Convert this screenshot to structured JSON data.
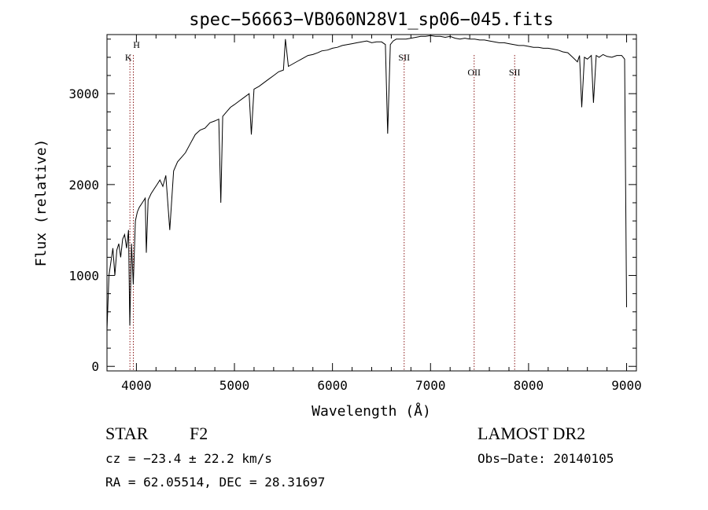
{
  "chart_data": {
    "type": "line",
    "title": "spec−56663−VB060N28V1_sp06−045.fits",
    "xlabel": "Wavelength (Å)",
    "ylabel": "Flux (relative)",
    "xlim": [
      3700,
      9100
    ],
    "ylim": [
      -50,
      3650
    ],
    "x_ticks": [
      4000,
      5000,
      6000,
      7000,
      8000,
      9000
    ],
    "y_ticks": [
      0,
      1000,
      2000,
      3000
    ],
    "x_tick_labels": [
      "4000",
      "5000",
      "6000",
      "7000",
      "8000",
      "9000"
    ],
    "y_tick_labels": [
      "0",
      "1000",
      "2000",
      "3000"
    ],
    "line_color": "#000000",
    "marker_color": "#8b1a1a",
    "series": [
      {
        "x": [
          3700,
          3720,
          3740,
          3760,
          3780,
          3800,
          3820,
          3840,
          3860,
          3880,
          3900,
          3920,
          3933,
          3950,
          3968,
          3990,
          4010,
          4030,
          4060,
          4090,
          4101,
          4120,
          4150,
          4180,
          4210,
          4240,
          4270,
          4300,
          4340,
          4380,
          4420,
          4460,
          4500,
          4550,
          4600,
          4650,
          4700,
          4750,
          4800,
          4840,
          4861,
          4880,
          4920,
          4960,
          5000,
          5050,
          5100,
          5150,
          5172,
          5200,
          5250,
          5300,
          5350,
          5400,
          5450,
          5500,
          5520,
          5550,
          5600,
          5650,
          5700,
          5750,
          5800,
          5850,
          5890,
          5950,
          6000,
          6050,
          6100,
          6150,
          6200,
          6250,
          6300,
          6350,
          6400,
          6450,
          6500,
          6540,
          6563,
          6590,
          6620,
          6650,
          6700,
          6750,
          6800,
          6850,
          6900,
          6950,
          7000,
          7050,
          7100,
          7150,
          7200,
          7250,
          7300,
          7350,
          7400,
          7450,
          7500,
          7550,
          7600,
          7650,
          7700,
          7750,
          7800,
          7850,
          7900,
          7950,
          8000,
          8050,
          8100,
          8150,
          8200,
          8250,
          8300,
          8350,
          8400,
          8450,
          8498,
          8520,
          8542,
          8570,
          8600,
          8640,
          8662,
          8690,
          8720,
          8760,
          8800,
          8850,
          8900,
          8950,
          8980,
          9000
        ],
        "y": [
          400,
          1000,
          1150,
          1300,
          1000,
          1280,
          1350,
          1200,
          1400,
          1450,
          1300,
          1500,
          450,
          1350,
          900,
          1600,
          1700,
          1750,
          1800,
          1850,
          1250,
          1830,
          1900,
          1950,
          2000,
          2050,
          1980,
          2100,
          1500,
          2150,
          2250,
          2300,
          2350,
          2450,
          2550,
          2600,
          2620,
          2680,
          2700,
          2720,
          1800,
          2750,
          2800,
          2850,
          2880,
          2920,
          2960,
          3000,
          2550,
          3050,
          3080,
          3120,
          3160,
          3200,
          3240,
          3260,
          3600,
          3300,
          3330,
          3360,
          3390,
          3420,
          3430,
          3450,
          3470,
          3480,
          3500,
          3510,
          3530,
          3540,
          3550,
          3560,
          3570,
          3580,
          3560,
          3570,
          3570,
          3540,
          2560,
          3540,
          3580,
          3600,
          3600,
          3600,
          3610,
          3620,
          3630,
          3630,
          3640,
          3630,
          3630,
          3620,
          3630,
          3610,
          3600,
          3610,
          3600,
          3600,
          3590,
          3590,
          3580,
          3570,
          3560,
          3560,
          3550,
          3540,
          3530,
          3530,
          3520,
          3510,
          3510,
          3500,
          3500,
          3490,
          3480,
          3460,
          3450,
          3400,
          3350,
          3420,
          2850,
          3400,
          3380,
          3420,
          2900,
          3420,
          3400,
          3430,
          3410,
          3400,
          3420,
          3420,
          3380,
          650
        ]
      }
    ],
    "line_markers": [
      {
        "x": 3934,
        "label": "K",
        "label_row": 2
      },
      {
        "x": 3969,
        "label": "H",
        "label_row": 1
      },
      {
        "x": 6731,
        "label": "SII",
        "label_row": 3
      },
      {
        "x": 7445,
        "label": "OII",
        "label_row": 4
      },
      {
        "x": 7858,
        "label": "SII",
        "label_row": 4
      }
    ]
  },
  "footer": {
    "object_class": "STAR",
    "subclass": "F2",
    "survey": "LAMOST DR2",
    "cz_text": "cz = −23.4 ± 22.2 km/s",
    "obs_date": "Obs−Date: 20140105",
    "coords": "RA =  62.05514, DEC =  28.31697"
  }
}
